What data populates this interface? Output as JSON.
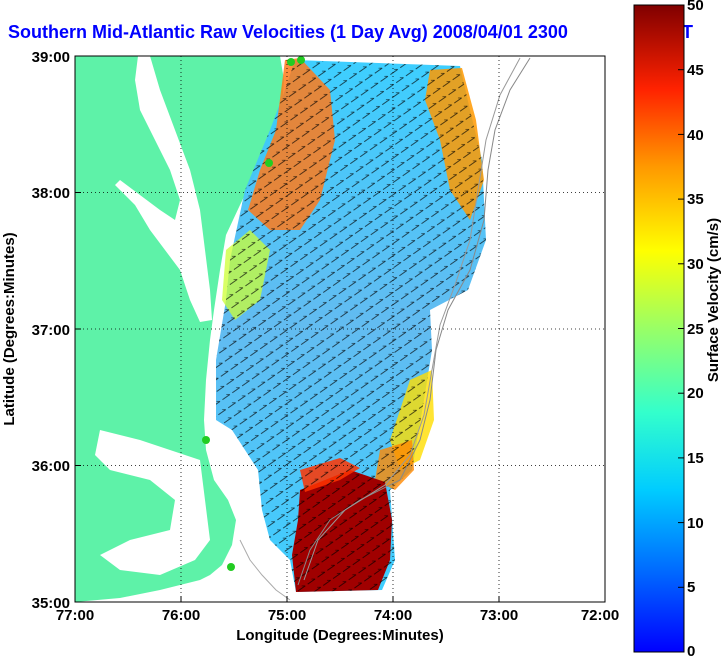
{
  "title": "Southern Mid-Atlantic Raw Velocities (1 Day Avg) 2008/04/01 2300",
  "title_tail": "T",
  "map": {
    "x_axis": {
      "label": "Longitude (Degrees:Minutes)",
      "ticks": [
        "77:00",
        "76:00",
        "75:00",
        "74:00",
        "73:00",
        "72:00"
      ]
    },
    "y_axis": {
      "label": "Latitude (Degrees:Minutes)",
      "ticks": [
        "39:00",
        "38:00",
        "37:00",
        "36:00",
        "35:00"
      ]
    },
    "lon_range": [
      -77,
      -72
    ],
    "lat_range": [
      35,
      39
    ],
    "grid": true,
    "grid_style": "dotted",
    "land_color": "#5ef2a8",
    "water_color": "#ffffff",
    "station_color": "#22cc22"
  },
  "colorbar": {
    "label": "Surface Velocity (cm/s)",
    "ticks": [
      "0",
      "5",
      "10",
      "15",
      "20",
      "25",
      "30",
      "35",
      "40",
      "45",
      "50"
    ],
    "range": [
      0,
      50
    ],
    "colormap": "jet"
  }
}
